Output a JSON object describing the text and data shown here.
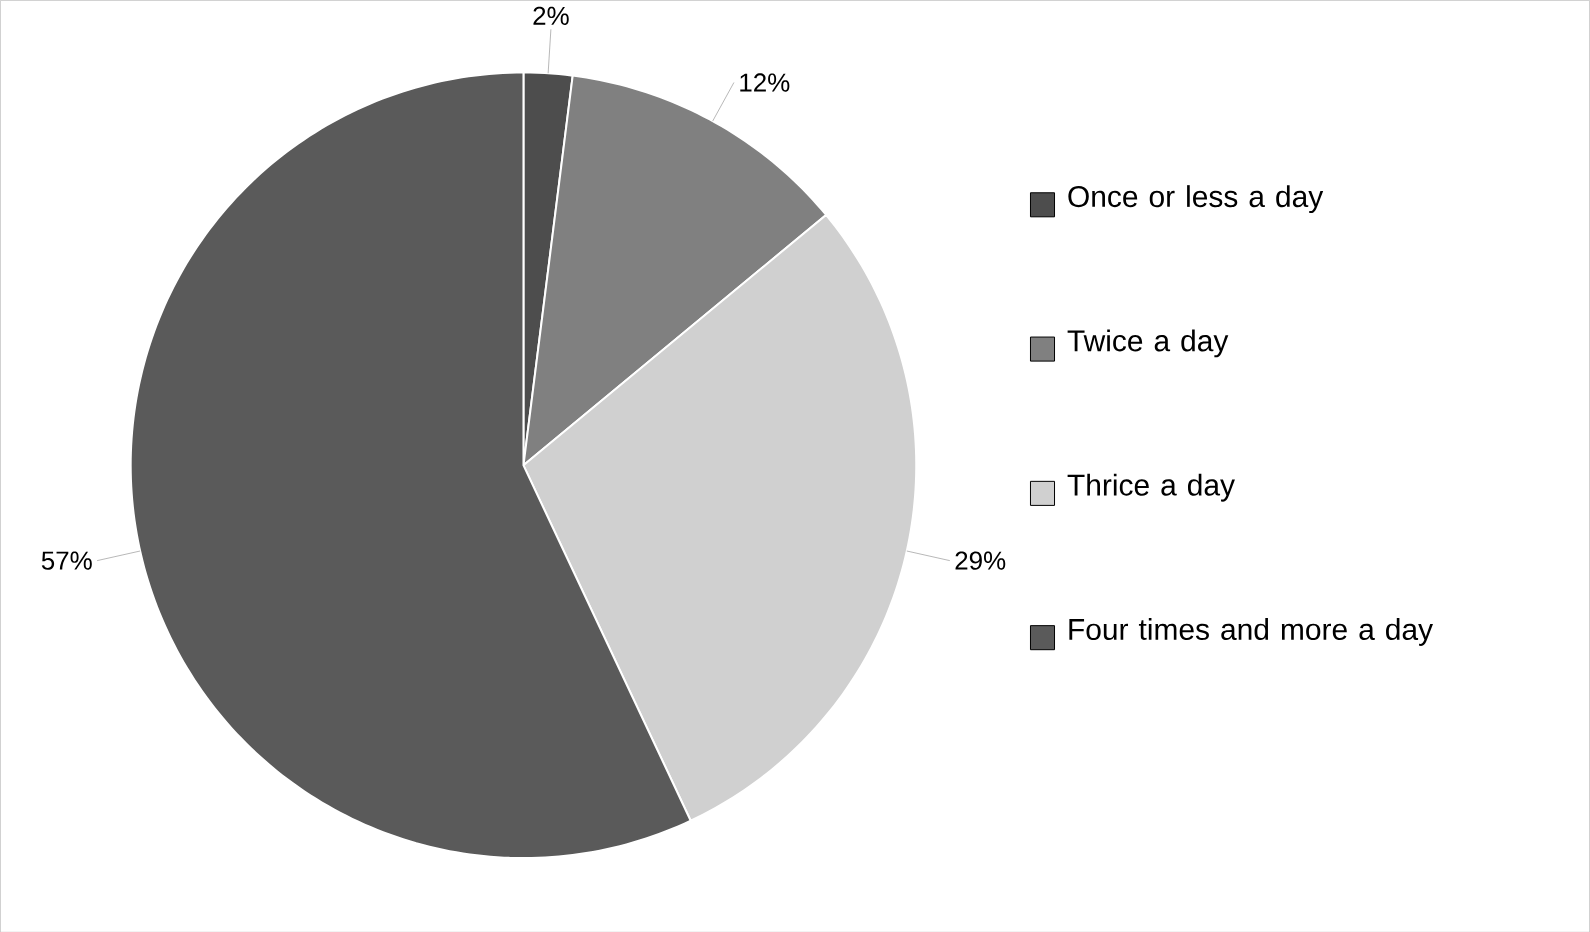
{
  "chart_data": {
    "type": "pie",
    "categories": [
      "Once or less a day",
      "Twice a day",
      "Thrice a day",
      "Four times and more a day"
    ],
    "values": [
      2,
      12,
      29,
      57
    ],
    "colors": [
      "#4d4d4d",
      "#808080",
      "#d0d0d0",
      "#5a5a5a"
    ],
    "value_labels": [
      "2%",
      "12%",
      "29%",
      "57%"
    ],
    "legend": "right"
  }
}
